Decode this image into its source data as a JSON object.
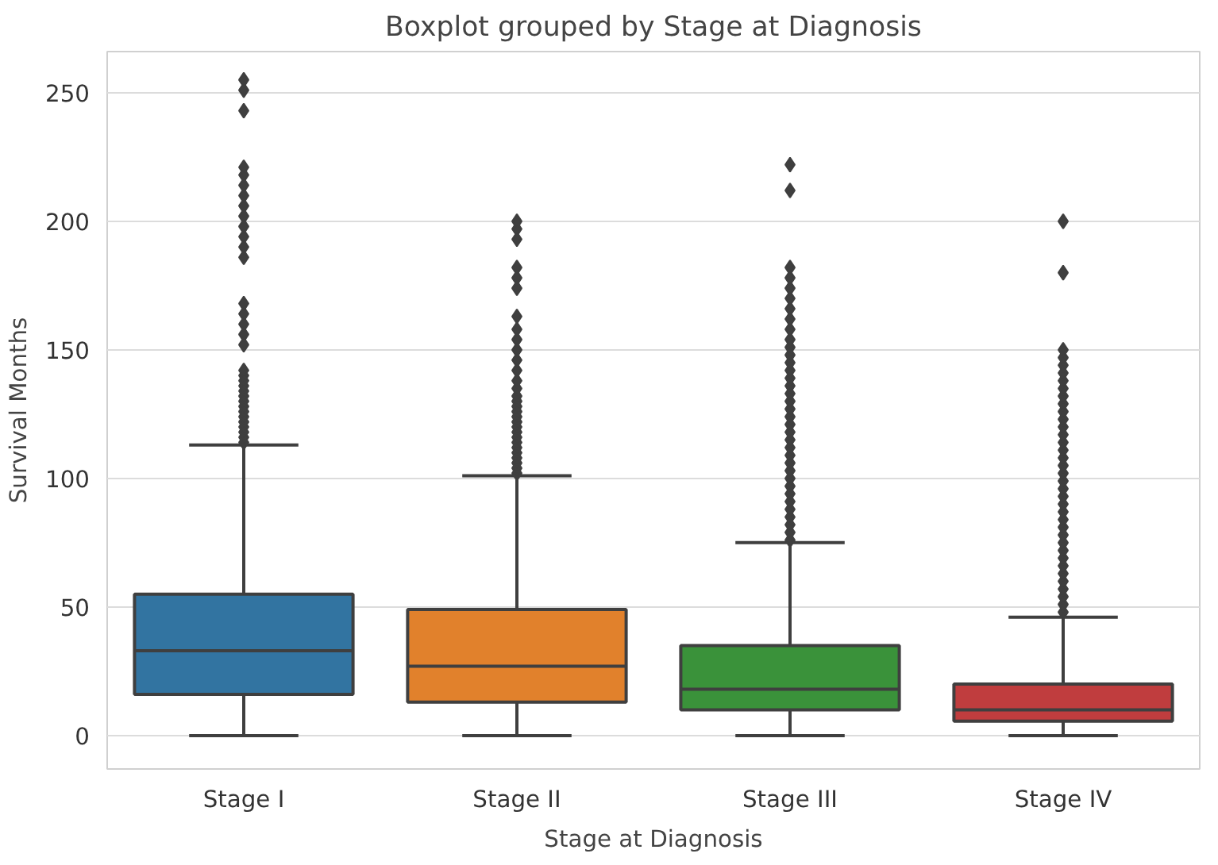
{
  "chart_data": {
    "type": "box",
    "title": "Boxplot grouped by Stage at Diagnosis",
    "xlabel": "Stage at Diagnosis",
    "ylabel": "Survival Months",
    "categories": [
      "Stage I",
      "Stage II",
      "Stage III",
      "Stage IV"
    ],
    "colors": [
      "#3274a1",
      "#e1812c",
      "#3a923a",
      "#c03d3e"
    ],
    "boxes": [
      {
        "low": 0,
        "q1": 16,
        "median": 33,
        "q3": 55,
        "high": 113,
        "outliers": [
          114,
          116,
          118,
          120,
          122,
          124,
          126,
          128,
          130,
          132,
          134,
          136,
          138,
          140,
          142,
          152,
          156,
          160,
          164,
          168,
          186,
          190,
          194,
          198,
          202,
          206,
          210,
          214,
          218,
          221,
          243,
          251,
          255
        ]
      },
      {
        "low": 0,
        "q1": 13,
        "median": 27,
        "q3": 49,
        "high": 101,
        "outliers": [
          102,
          104,
          106,
          108,
          110,
          112,
          114,
          116,
          118,
          120,
          122,
          124,
          126,
          128,
          130,
          132,
          135,
          138,
          142,
          146,
          150,
          154,
          158,
          163,
          174,
          178,
          182,
          193,
          197,
          200
        ]
      },
      {
        "low": 0,
        "q1": 10,
        "median": 18,
        "q3": 35,
        "high": 75,
        "outliers": [
          76,
          79,
          82,
          85,
          88,
          91,
          94,
          97,
          100,
          103,
          106,
          109,
          112,
          115,
          118,
          121,
          124,
          127,
          130,
          133,
          136,
          139,
          142,
          145,
          148,
          151,
          154,
          158,
          162,
          166,
          170,
          174,
          178,
          182,
          212,
          222
        ]
      },
      {
        "low": 0,
        "q1": 5.6,
        "median": 10,
        "q3": 20,
        "high": 46,
        "outliers": [
          48,
          51,
          54,
          57,
          60,
          63,
          66,
          69,
          72,
          75,
          78,
          81,
          84,
          87,
          90,
          93,
          96,
          99,
          102,
          105,
          108,
          111,
          114,
          117,
          120,
          123,
          126,
          129,
          132,
          135,
          138,
          141,
          144,
          147,
          150,
          180,
          200
        ]
      }
    ],
    "ylim": [
      -13,
      266
    ],
    "yticks": [
      0,
      50,
      100,
      150,
      200,
      250
    ],
    "grid": "y",
    "marker": "diamond"
  }
}
